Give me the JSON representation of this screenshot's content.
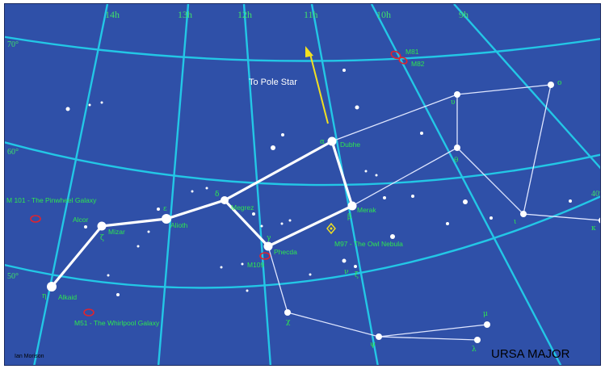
{
  "title": "URSA MAJOR",
  "credit": "Ian Morison",
  "pole_label": "To Pole Star",
  "colors": {
    "background": "#2f50a8",
    "grid": "#23c7e6",
    "labels": "#2ee64f",
    "galaxy": "#e0242e",
    "arrow": "#f2e020",
    "stars": "#ffffff"
  },
  "ra_labels": [
    "14h",
    "13h",
    "12h",
    "11h",
    "10h",
    "9h"
  ],
  "dec_labels": [
    "70°",
    "60°",
    "50°",
    "40°"
  ],
  "star_names": [
    "Alkaid",
    "Mizar",
    "Alcor",
    "Alioth",
    "Megrez",
    "Phecda",
    "Merak",
    "Dubhe"
  ],
  "greek_labels": [
    "η",
    "ζ",
    "ε",
    "δ",
    "γ",
    "β",
    "α",
    "ο",
    "υ",
    "θ",
    "χ",
    "ψ",
    "μ",
    "λ",
    "ι",
    "κ",
    "ν",
    "ξ"
  ],
  "objects": [
    {
      "name": "M81",
      "icon": "galaxy-ellipse"
    },
    {
      "name": "M82",
      "icon": "galaxy-ellipse"
    },
    {
      "name": "M 101 - The Pinwheel Galaxy",
      "icon": "galaxy-ellipse"
    },
    {
      "name": "M51 - The Whirlpool Galaxy",
      "icon": "galaxy-ellipse"
    },
    {
      "name": "M109",
      "icon": "galaxy-ellipse"
    },
    {
      "name": "M97 - The Owl Nebula",
      "icon": "nebula-diamond"
    }
  ]
}
